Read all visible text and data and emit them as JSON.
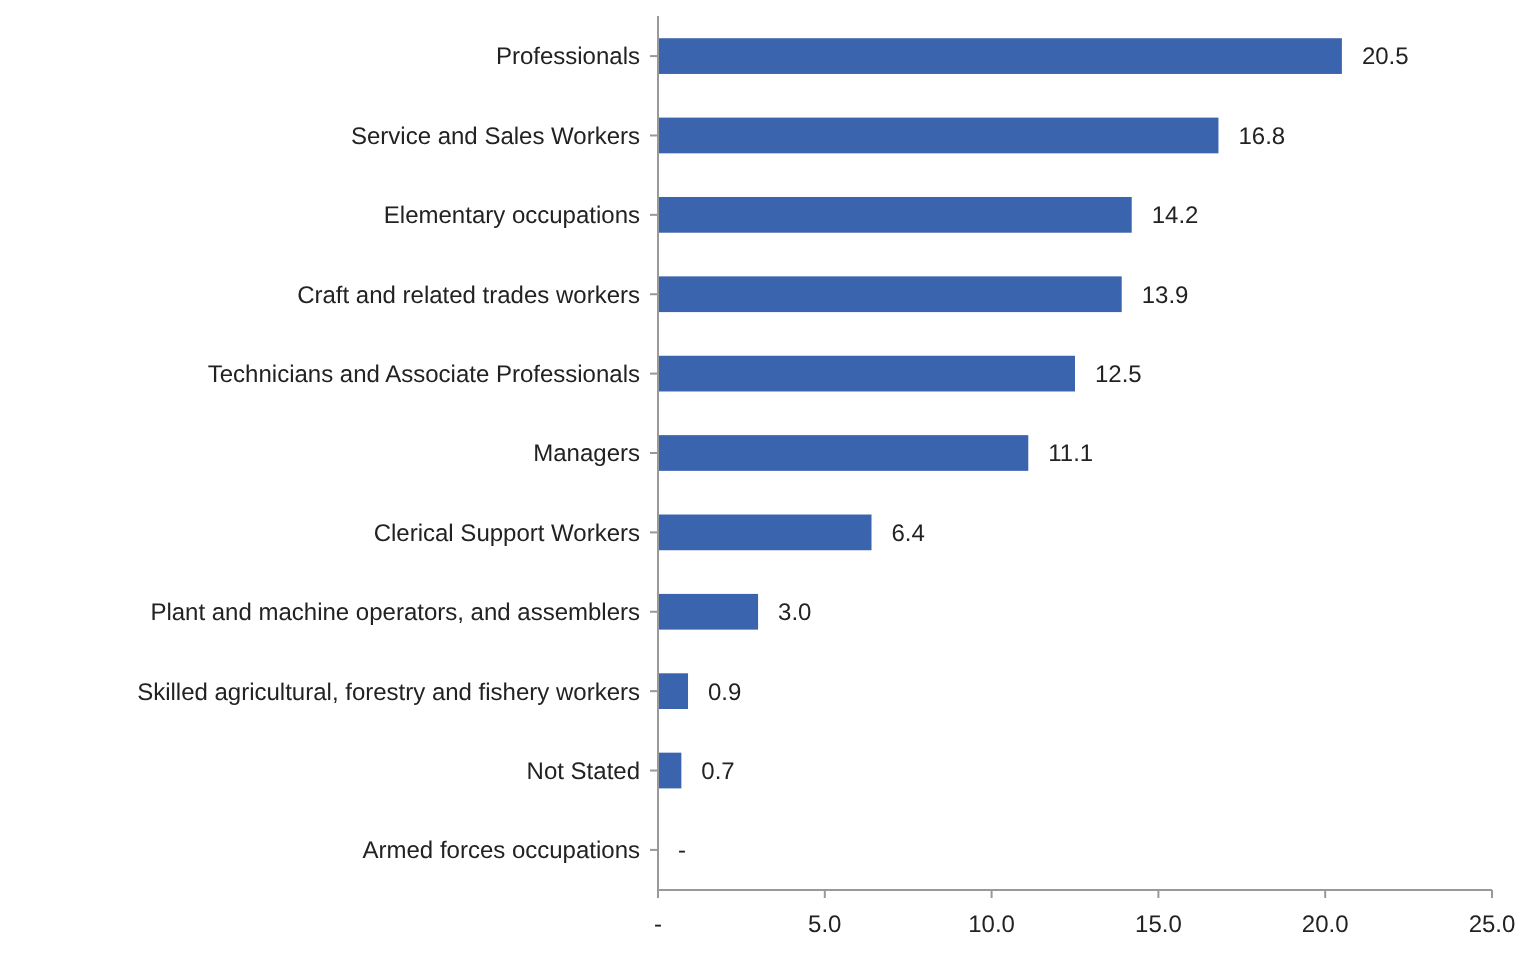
{
  "chart_data": {
    "type": "bar",
    "orientation": "horizontal",
    "categories": [
      "Professionals",
      "Service and Sales Workers",
      "Elementary occupations",
      "Craft and related trades workers",
      "Technicians and Associate Professionals",
      "Managers",
      "Clerical Support Workers",
      "Plant and machine operators, and assemblers",
      "Skilled agricultural, forestry and fishery workers",
      "Not Stated",
      "Armed forces occupations"
    ],
    "values": [
      20.5,
      16.8,
      14.2,
      13.9,
      12.5,
      11.1,
      6.4,
      3.0,
      0.9,
      0.7,
      0
    ],
    "value_labels": [
      "20.5",
      "16.8",
      "14.2",
      "13.9",
      "12.5",
      "11.1",
      "6.4",
      "3.0",
      "0.9",
      "0.7",
      "-"
    ],
    "color": "#3a64ae",
    "xlim": [
      0,
      25
    ],
    "xticks": [
      {
        "value": 0,
        "label": "-"
      },
      {
        "value": 5,
        "label": "5.0"
      },
      {
        "value": 10,
        "label": "10.0"
      },
      {
        "value": 15,
        "label": "15.0"
      },
      {
        "value": 20,
        "label": "20.0"
      },
      {
        "value": 25,
        "label": "25.0"
      }
    ],
    "grid": false
  }
}
